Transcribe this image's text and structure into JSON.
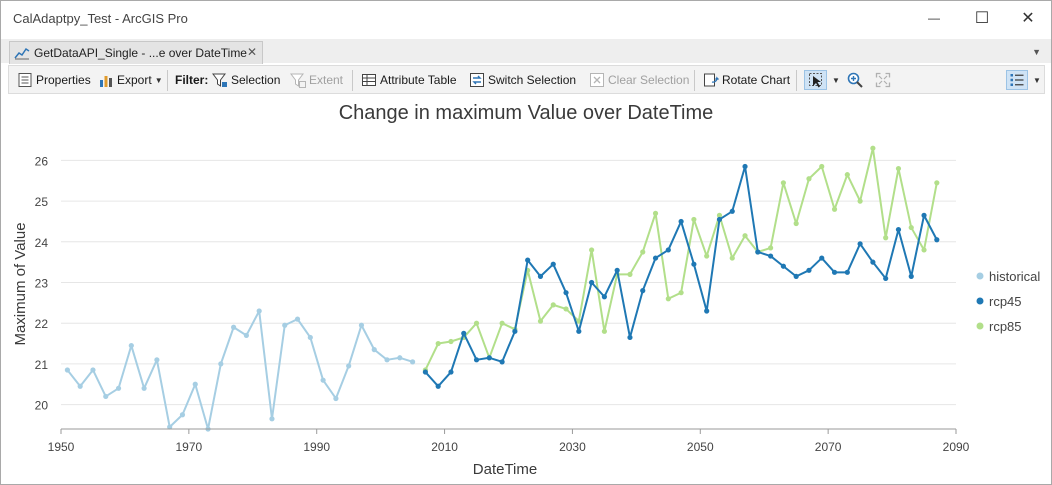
{
  "window": {
    "title": "CalAdaptpy_Test - ArcGIS Pro",
    "minimize_glyph": "—",
    "maximize_glyph": "☐",
    "close_glyph": "✕"
  },
  "tab": {
    "label": "GetDataAPI_Single - ...e over DateTime",
    "close_glyph": "✕",
    "icon": "line-chart-icon"
  },
  "toolbar": {
    "properties": "Properties",
    "export": "Export",
    "filter_label": "Filter:",
    "selection": "Selection",
    "extent": "Extent",
    "attribute_table": "Attribute Table",
    "switch_selection": "Switch Selection",
    "clear_selection": "Clear Selection",
    "rotate_chart": "Rotate Chart",
    "icons": [
      "properties-icon",
      "export-icon",
      "filter-selection-icon",
      "filter-extent-icon",
      "attribute-table-icon",
      "switch-selection-icon",
      "clear-selection-icon",
      "rotate-chart-icon",
      "select-tool-icon",
      "zoom-in-icon",
      "full-extent-icon",
      "legend-list-icon"
    ]
  },
  "chart_data": {
    "type": "line",
    "title": "Change in maximum Value over DateTime",
    "xlabel": "DateTime",
    "ylabel": "Maximum of Value",
    "xlim": [
      1950,
      2090
    ],
    "ylim": [
      19.4,
      26.6
    ],
    "xticks": [
      1950,
      1970,
      1990,
      2010,
      2030,
      2050,
      2070,
      2090
    ],
    "yticks": [
      20,
      21,
      22,
      23,
      24,
      25,
      26
    ],
    "grid": "horizontal",
    "legend_position": "right",
    "series": [
      {
        "name": "historical",
        "color": "#a6cee3",
        "x": [
          1951,
          1953,
          1955,
          1957,
          1959,
          1961,
          1963,
          1965,
          1967,
          1969,
          1971,
          1973,
          1975,
          1977,
          1979,
          1981,
          1983,
          1985,
          1987,
          1989,
          1991,
          1993,
          1995,
          1997,
          1999,
          2001,
          2003,
          2005
        ],
        "y": [
          20.85,
          20.45,
          20.85,
          20.2,
          20.4,
          21.45,
          20.4,
          21.1,
          19.45,
          19.75,
          20.5,
          19.4,
          21.0,
          21.9,
          21.7,
          22.3,
          19.65,
          21.95,
          22.1,
          21.65,
          20.6,
          20.15,
          20.95,
          21.95,
          21.35,
          21.1,
          21.15,
          21.05
        ]
      },
      {
        "name": "rcp45",
        "color": "#1f78b4",
        "x": [
          2007,
          2009,
          2011,
          2013,
          2015,
          2017,
          2019,
          2021,
          2023,
          2025,
          2027,
          2029,
          2031,
          2033,
          2035,
          2037,
          2039,
          2041,
          2043,
          2045,
          2047,
          2049,
          2051,
          2053,
          2055,
          2057,
          2059,
          2061,
          2063,
          2065,
          2067,
          2069,
          2071,
          2073,
          2075,
          2077,
          2079,
          2081,
          2083,
          2085,
          2087
        ],
        "y": [
          20.8,
          20.45,
          20.8,
          21.75,
          21.1,
          21.15,
          21.05,
          21.8,
          23.55,
          23.15,
          23.45,
          22.75,
          21.8,
          23.0,
          22.65,
          23.3,
          21.65,
          22.8,
          23.6,
          23.8,
          24.5,
          23.45,
          22.3,
          24.55,
          24.75,
          25.85,
          23.75,
          23.65,
          23.4,
          23.15,
          23.3,
          23.6,
          23.25,
          23.25,
          23.95,
          23.5,
          23.1,
          24.3,
          23.15,
          24.65,
          24.05
        ]
      },
      {
        "name": "rcp85",
        "color": "#b2df8a",
        "x": [
          2007,
          2009,
          2011,
          2013,
          2015,
          2017,
          2019,
          2021,
          2023,
          2025,
          2027,
          2029,
          2031,
          2033,
          2035,
          2037,
          2039,
          2041,
          2043,
          2045,
          2047,
          2049,
          2051,
          2053,
          2055,
          2057,
          2059,
          2061,
          2063,
          2065,
          2067,
          2069,
          2071,
          2073,
          2075,
          2077,
          2079,
          2081,
          2083,
          2085,
          2087
        ],
        "y": [
          20.85,
          21.5,
          21.55,
          21.65,
          22.0,
          21.15,
          22.0,
          21.85,
          23.3,
          22.05,
          22.45,
          22.35,
          22.05,
          23.8,
          21.8,
          23.2,
          23.2,
          23.75,
          24.7,
          22.6,
          22.75,
          24.55,
          23.65,
          24.65,
          23.6,
          24.15,
          23.75,
          23.85,
          25.45,
          24.45,
          25.55,
          25.85,
          24.8,
          25.65,
          25.0,
          26.3,
          24.1,
          25.8,
          24.35,
          23.8,
          25.45
        ]
      }
    ]
  }
}
